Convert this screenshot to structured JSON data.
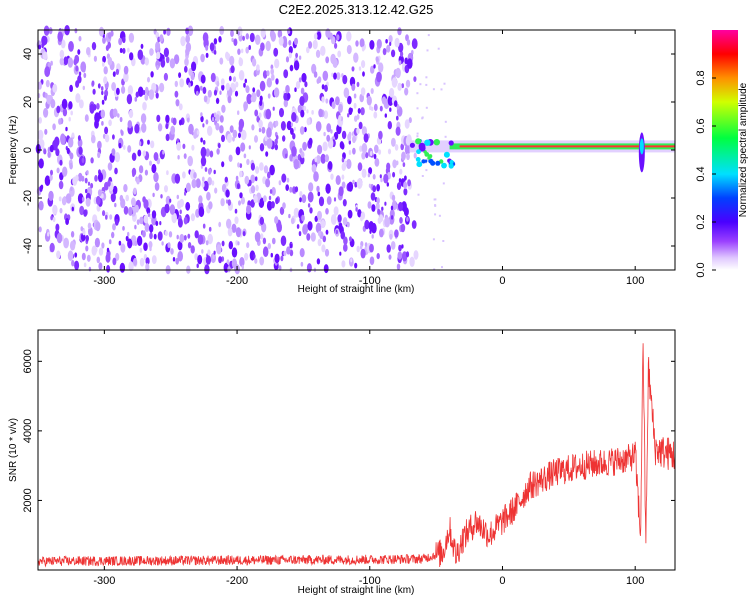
{
  "title": "C2E2.2025.313.12.42.G25",
  "chart_data": [
    {
      "type": "heatmap",
      "xlabel": "Height of straight line (km)",
      "ylabel": "Frequency (Hz)",
      "xlim": [
        -350,
        130
      ],
      "ylim": [
        -50,
        50
      ],
      "xticks": [
        -300,
        -200,
        -100,
        0,
        100
      ],
      "yticks": [
        -40,
        -20,
        0,
        20,
        40
      ],
      "colorbar": {
        "label": "Normalized spectral amplitude",
        "range": [
          0.0,
          1.0
        ],
        "ticks": [
          "0.0",
          "0.2",
          "0.4",
          "0.6",
          "0.8"
        ]
      },
      "features": {
        "noise_region_x": [
          -350,
          -65
        ],
        "signal_line_x": [
          -70,
          130
        ],
        "signal_line_frequency_hz": 1.5,
        "spike_x": 105
      }
    },
    {
      "type": "line",
      "xlabel": "Height of straight line (km)",
      "ylabel": "SNR (10 * v/v)",
      "xlim": [
        -350,
        130
      ],
      "ylim": [
        0,
        6900
      ],
      "xticks": [
        -300,
        -200,
        -100,
        0,
        100
      ],
      "yticks": [
        2000,
        4000,
        6000
      ],
      "color": "#ee3333",
      "series": [
        {
          "x": [
            -350,
            -300,
            -250,
            -200,
            -150,
            -100,
            -60,
            -45,
            -40,
            -35,
            -30,
            -20,
            -10,
            0,
            10,
            20,
            40,
            60,
            80,
            95,
            100,
            104,
            106,
            108,
            110,
            115,
            120,
            130
          ],
          "y": [
            250,
            260,
            270,
            280,
            290,
            300,
            320,
            500,
            1200,
            400,
            900,
            1400,
            1000,
            1400,
            1800,
            2400,
            2800,
            3000,
            3100,
            3200,
            3300,
            1000,
            6800,
            600,
            5800,
            3500,
            3400,
            3300
          ]
        }
      ]
    }
  ]
}
